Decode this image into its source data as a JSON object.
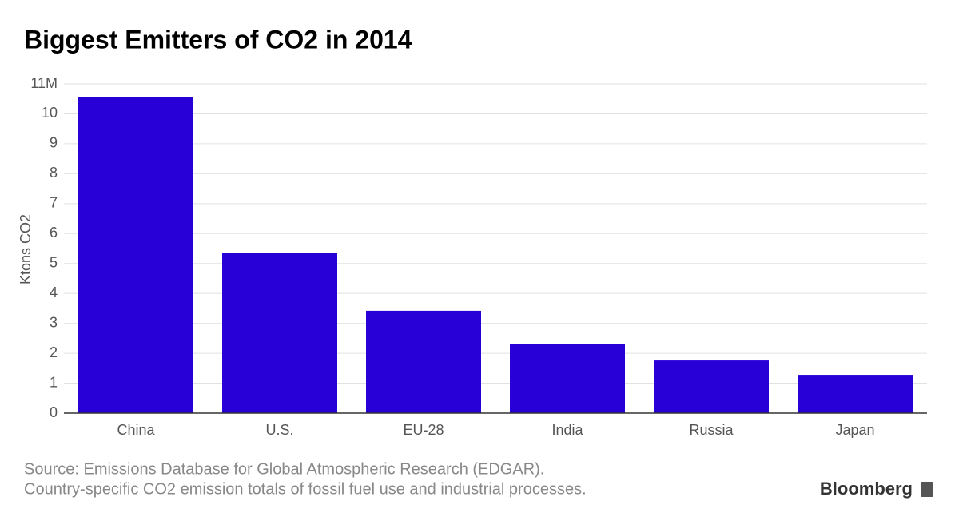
{
  "chart_data": {
    "type": "bar",
    "title": "Biggest Emitters of CO2 in 2014",
    "y_label": "Ktons CO2",
    "categories": [
      "China",
      "U.S.",
      "EU-28",
      "India",
      "Russia",
      "Japan"
    ],
    "values": [
      10.55,
      5.34,
      3.42,
      2.32,
      1.76,
      1.28
    ],
    "color": "#2800d7",
    "ylim": [
      0,
      11
    ],
    "yticks": [
      0,
      1,
      2,
      3,
      4,
      5,
      6,
      7,
      8,
      9,
      10,
      {
        "value": 11,
        "label": "11M"
      }
    ],
    "grid": true,
    "source": [
      "Source: Emissions Database for Global Atmospheric Research (EDGAR).",
      "Country-specific CO2 emission totals of fossil fuel use and industrial processes."
    ],
    "brand": "Bloomberg"
  }
}
